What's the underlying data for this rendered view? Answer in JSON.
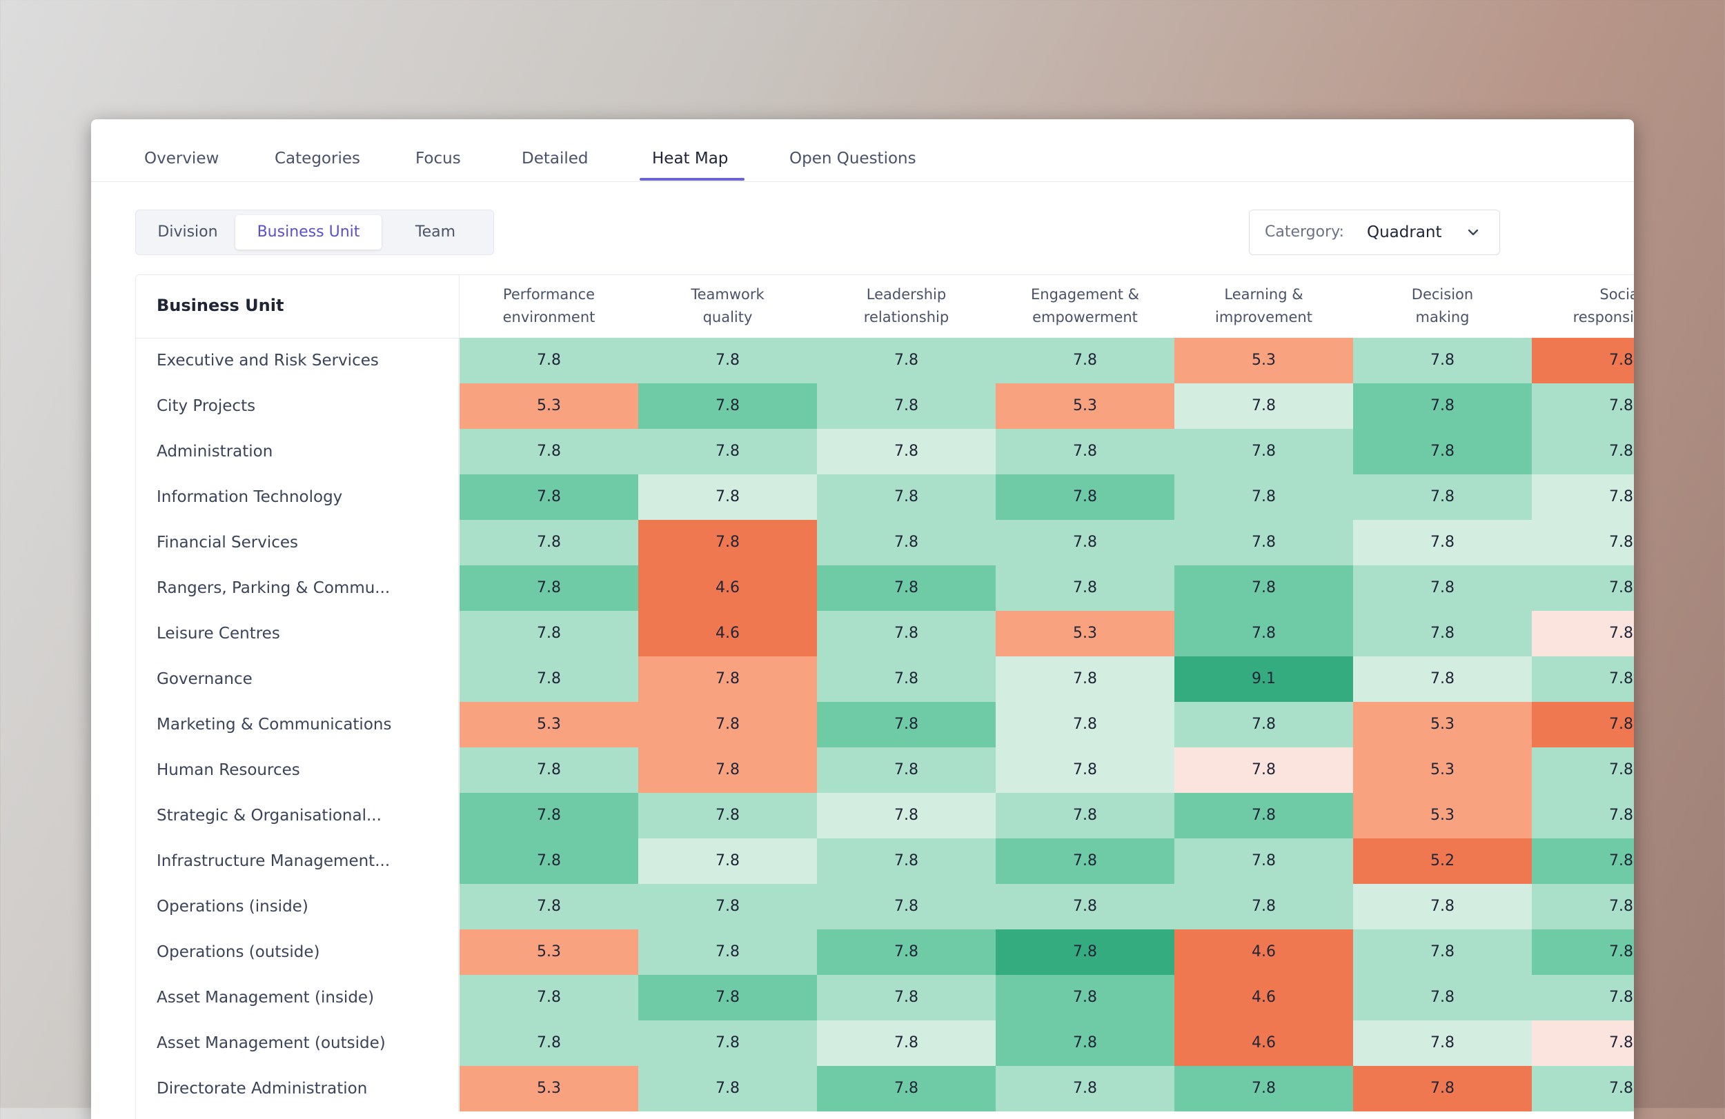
{
  "tabs": [
    {
      "label": "Overview",
      "active": false
    },
    {
      "label": "Categories",
      "active": false
    },
    {
      "label": "Focus",
      "active": false
    },
    {
      "label": "Detailed",
      "active": false
    },
    {
      "label": "Heat Map",
      "active": true
    },
    {
      "label": "Open Questions",
      "active": false
    }
  ],
  "grouping": {
    "options": [
      "Division",
      "Business Unit",
      "Team"
    ],
    "selected": "Business Unit"
  },
  "category": {
    "label": "Catergory:",
    "value": "Quadrant",
    "icon": "chevron-down-icon"
  },
  "colors": {
    "green_light": "#d3ede1",
    "green_mid": "#aadfc9",
    "green": "#6ecba5",
    "green_dark": "#35ab80",
    "orange_pale": "#fbe4dd",
    "orange_light": "#f8a27f",
    "orange": "#f07850",
    "accent": "#6a63d4"
  },
  "table": {
    "row_header": "Business Unit",
    "columns": [
      "Performance\nenvironment",
      "Teamwork\nquality",
      "Leadership\nrelationship",
      "Engagement &\nempowerment",
      "Learning &\nimprovement",
      "Decision\nmaking",
      "Social\nresponsibility"
    ],
    "rows": [
      {
        "label": "Executive and Risk Services",
        "values": [
          "7.8",
          "7.8",
          "7.8",
          "7.8",
          "5.3",
          "7.8",
          "7.8"
        ],
        "levels": [
          "gm",
          "gm",
          "gm",
          "gm",
          "ol",
          "gm",
          "o"
        ]
      },
      {
        "label": "City Projects",
        "values": [
          "5.3",
          "7.8",
          "7.8",
          "5.3",
          "7.8",
          "7.8",
          "7.8"
        ],
        "levels": [
          "ol",
          "g",
          "gm",
          "ol",
          "gl",
          "g",
          "gm"
        ]
      },
      {
        "label": "Administration",
        "values": [
          "7.8",
          "7.8",
          "7.8",
          "7.8",
          "7.8",
          "7.8",
          "7.8"
        ],
        "levels": [
          "gm",
          "gm",
          "gl",
          "gm",
          "gm",
          "g",
          "gm"
        ]
      },
      {
        "label": "Information Technology",
        "values": [
          "7.8",
          "7.8",
          "7.8",
          "7.8",
          "7.8",
          "7.8",
          "7.8"
        ],
        "levels": [
          "g",
          "gl",
          "gm",
          "g",
          "gm",
          "gm",
          "gl"
        ]
      },
      {
        "label": "Financial Services",
        "values": [
          "7.8",
          "7.8",
          "7.8",
          "7.8",
          "7.8",
          "7.8",
          "7.8"
        ],
        "levels": [
          "gm",
          "o",
          "gm",
          "gm",
          "gm",
          "gl",
          "gl"
        ]
      },
      {
        "label": "Rangers, Parking & Commu...",
        "values": [
          "7.8",
          "4.6",
          "7.8",
          "7.8",
          "7.8",
          "7.8",
          "7.8"
        ],
        "levels": [
          "g",
          "o",
          "g",
          "gm",
          "g",
          "gm",
          "gm"
        ]
      },
      {
        "label": "Leisure Centres",
        "values": [
          "7.8",
          "4.6",
          "7.8",
          "5.3",
          "7.8",
          "7.8",
          "7.8"
        ],
        "levels": [
          "gm",
          "o",
          "gm",
          "ol",
          "g",
          "gm",
          "op"
        ]
      },
      {
        "label": "Governance",
        "values": [
          "7.8",
          "7.8",
          "7.8",
          "7.8",
          "9.1",
          "7.8",
          "7.8"
        ],
        "levels": [
          "gm",
          "ol",
          "gm",
          "gl",
          "gd",
          "gl",
          "gm"
        ]
      },
      {
        "label": "Marketing & Communications",
        "values": [
          "5.3",
          "7.8",
          "7.8",
          "7.8",
          "7.8",
          "5.3",
          "7.8"
        ],
        "levels": [
          "ol",
          "ol",
          "g",
          "gl",
          "gm",
          "ol",
          "o"
        ]
      },
      {
        "label": "Human Resources",
        "values": [
          "7.8",
          "7.8",
          "7.8",
          "7.8",
          "7.8",
          "5.3",
          "7.8"
        ],
        "levels": [
          "gm",
          "ol",
          "gm",
          "gl",
          "op",
          "ol",
          "gm"
        ]
      },
      {
        "label": "Strategic & Organisational...",
        "values": [
          "7.8",
          "7.8",
          "7.8",
          "7.8",
          "7.8",
          "5.3",
          "7.8"
        ],
        "levels": [
          "g",
          "gm",
          "gl",
          "gm",
          "g",
          "ol",
          "gm"
        ]
      },
      {
        "label": "Infrastructure Management...",
        "values": [
          "7.8",
          "7.8",
          "7.8",
          "7.8",
          "7.8",
          "5.2",
          "7.8"
        ],
        "levels": [
          "g",
          "gl",
          "gm",
          "g",
          "gm",
          "o",
          "g"
        ]
      },
      {
        "label": "Operations (inside)",
        "values": [
          "7.8",
          "7.8",
          "7.8",
          "7.8",
          "7.8",
          "7.8",
          "7.8"
        ],
        "levels": [
          "gm",
          "gm",
          "gm",
          "gm",
          "gm",
          "gl",
          "gm"
        ]
      },
      {
        "label": "Operations (outside)",
        "values": [
          "5.3",
          "7.8",
          "7.8",
          "7.8",
          "4.6",
          "7.8",
          "7.8"
        ],
        "levels": [
          "ol",
          "gm",
          "g",
          "gd",
          "o",
          "gm",
          "g"
        ]
      },
      {
        "label": "Asset Management (inside)",
        "values": [
          "7.8",
          "7.8",
          "7.8",
          "7.8",
          "4.6",
          "7.8",
          "7.8"
        ],
        "levels": [
          "gm",
          "g",
          "gm",
          "g",
          "o",
          "gm",
          "gm"
        ]
      },
      {
        "label": "Asset Management (outside)",
        "values": [
          "7.8",
          "7.8",
          "7.8",
          "7.8",
          "4.6",
          "7.8",
          "7.8"
        ],
        "levels": [
          "gm",
          "gm",
          "gl",
          "g",
          "o",
          "gl",
          "op"
        ]
      },
      {
        "label": "Directorate Administration",
        "values": [
          "5.3",
          "7.8",
          "7.8",
          "7.8",
          "7.8",
          "7.8",
          "7.8"
        ],
        "levels": [
          "ol",
          "gm",
          "g",
          "gm",
          "g",
          "o",
          "gm"
        ]
      }
    ]
  }
}
